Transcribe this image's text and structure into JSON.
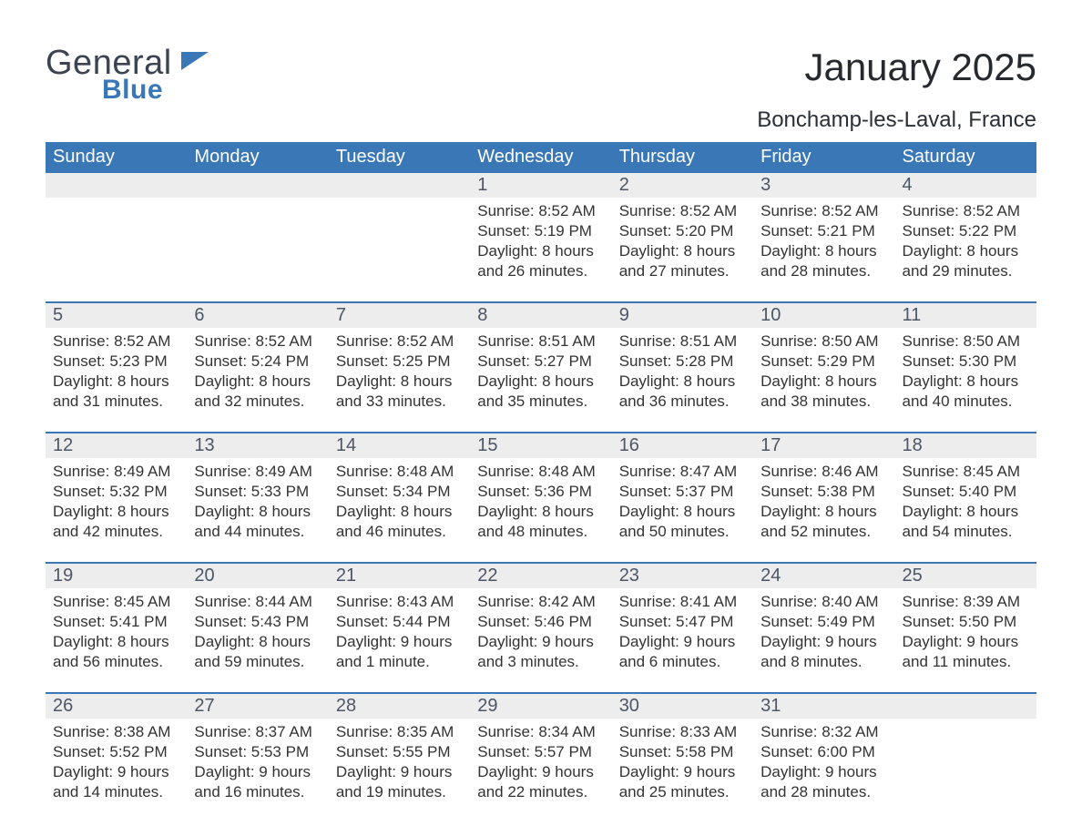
{
  "brand": {
    "word1": "General",
    "word2": "Blue"
  },
  "header": {
    "month_year": "January 2025",
    "location": "Bonchamp-les-Laval, France"
  },
  "colors": {
    "header_blue": "#3a77b7",
    "day_row_bg": "#ededed",
    "rule_blue": "#3a77b7",
    "text": "#333333",
    "day_number": "#4c5666",
    "background": "#ffffff"
  },
  "typography": {
    "body_fontsize_pt": 13,
    "daynum_fontsize_pt": 15,
    "weekday_fontsize_pt": 15,
    "title_fontsize_pt": 32,
    "location_fontsize_pt": 18
  },
  "weekdays": [
    "Sunday",
    "Monday",
    "Tuesday",
    "Wednesday",
    "Thursday",
    "Friday",
    "Saturday"
  ],
  "weeks": [
    {
      "days": [
        {
          "n": "",
          "lines": [
            "",
            "",
            "",
            ""
          ]
        },
        {
          "n": "",
          "lines": [
            "",
            "",
            "",
            ""
          ]
        },
        {
          "n": "",
          "lines": [
            "",
            "",
            "",
            ""
          ]
        },
        {
          "n": "1",
          "lines": [
            "Sunrise: 8:52 AM",
            "Sunset: 5:19 PM",
            "Daylight: 8 hours",
            "and 26 minutes."
          ]
        },
        {
          "n": "2",
          "lines": [
            "Sunrise: 8:52 AM",
            "Sunset: 5:20 PM",
            "Daylight: 8 hours",
            "and 27 minutes."
          ]
        },
        {
          "n": "3",
          "lines": [
            "Sunrise: 8:52 AM",
            "Sunset: 5:21 PM",
            "Daylight: 8 hours",
            "and 28 minutes."
          ]
        },
        {
          "n": "4",
          "lines": [
            "Sunrise: 8:52 AM",
            "Sunset: 5:22 PM",
            "Daylight: 8 hours",
            "and 29 minutes."
          ]
        }
      ]
    },
    {
      "days": [
        {
          "n": "5",
          "lines": [
            "Sunrise: 8:52 AM",
            "Sunset: 5:23 PM",
            "Daylight: 8 hours",
            "and 31 minutes."
          ]
        },
        {
          "n": "6",
          "lines": [
            "Sunrise: 8:52 AM",
            "Sunset: 5:24 PM",
            "Daylight: 8 hours",
            "and 32 minutes."
          ]
        },
        {
          "n": "7",
          "lines": [
            "Sunrise: 8:52 AM",
            "Sunset: 5:25 PM",
            "Daylight: 8 hours",
            "and 33 minutes."
          ]
        },
        {
          "n": "8",
          "lines": [
            "Sunrise: 8:51 AM",
            "Sunset: 5:27 PM",
            "Daylight: 8 hours",
            "and 35 minutes."
          ]
        },
        {
          "n": "9",
          "lines": [
            "Sunrise: 8:51 AM",
            "Sunset: 5:28 PM",
            "Daylight: 8 hours",
            "and 36 minutes."
          ]
        },
        {
          "n": "10",
          "lines": [
            "Sunrise: 8:50 AM",
            "Sunset: 5:29 PM",
            "Daylight: 8 hours",
            "and 38 minutes."
          ]
        },
        {
          "n": "11",
          "lines": [
            "Sunrise: 8:50 AM",
            "Sunset: 5:30 PM",
            "Daylight: 8 hours",
            "and 40 minutes."
          ]
        }
      ]
    },
    {
      "days": [
        {
          "n": "12",
          "lines": [
            "Sunrise: 8:49 AM",
            "Sunset: 5:32 PM",
            "Daylight: 8 hours",
            "and 42 minutes."
          ]
        },
        {
          "n": "13",
          "lines": [
            "Sunrise: 8:49 AM",
            "Sunset: 5:33 PM",
            "Daylight: 8 hours",
            "and 44 minutes."
          ]
        },
        {
          "n": "14",
          "lines": [
            "Sunrise: 8:48 AM",
            "Sunset: 5:34 PM",
            "Daylight: 8 hours",
            "and 46 minutes."
          ]
        },
        {
          "n": "15",
          "lines": [
            "Sunrise: 8:48 AM",
            "Sunset: 5:36 PM",
            "Daylight: 8 hours",
            "and 48 minutes."
          ]
        },
        {
          "n": "16",
          "lines": [
            "Sunrise: 8:47 AM",
            "Sunset: 5:37 PM",
            "Daylight: 8 hours",
            "and 50 minutes."
          ]
        },
        {
          "n": "17",
          "lines": [
            "Sunrise: 8:46 AM",
            "Sunset: 5:38 PM",
            "Daylight: 8 hours",
            "and 52 minutes."
          ]
        },
        {
          "n": "18",
          "lines": [
            "Sunrise: 8:45 AM",
            "Sunset: 5:40 PM",
            "Daylight: 8 hours",
            "and 54 minutes."
          ]
        }
      ]
    },
    {
      "days": [
        {
          "n": "19",
          "lines": [
            "Sunrise: 8:45 AM",
            "Sunset: 5:41 PM",
            "Daylight: 8 hours",
            "and 56 minutes."
          ]
        },
        {
          "n": "20",
          "lines": [
            "Sunrise: 8:44 AM",
            "Sunset: 5:43 PM",
            "Daylight: 8 hours",
            "and 59 minutes."
          ]
        },
        {
          "n": "21",
          "lines": [
            "Sunrise: 8:43 AM",
            "Sunset: 5:44 PM",
            "Daylight: 9 hours",
            "and 1 minute."
          ]
        },
        {
          "n": "22",
          "lines": [
            "Sunrise: 8:42 AM",
            "Sunset: 5:46 PM",
            "Daylight: 9 hours",
            "and 3 minutes."
          ]
        },
        {
          "n": "23",
          "lines": [
            "Sunrise: 8:41 AM",
            "Sunset: 5:47 PM",
            "Daylight: 9 hours",
            "and 6 minutes."
          ]
        },
        {
          "n": "24",
          "lines": [
            "Sunrise: 8:40 AM",
            "Sunset: 5:49 PM",
            "Daylight: 9 hours",
            "and 8 minutes."
          ]
        },
        {
          "n": "25",
          "lines": [
            "Sunrise: 8:39 AM",
            "Sunset: 5:50 PM",
            "Daylight: 9 hours",
            "and 11 minutes."
          ]
        }
      ]
    },
    {
      "days": [
        {
          "n": "26",
          "lines": [
            "Sunrise: 8:38 AM",
            "Sunset: 5:52 PM",
            "Daylight: 9 hours",
            "and 14 minutes."
          ]
        },
        {
          "n": "27",
          "lines": [
            "Sunrise: 8:37 AM",
            "Sunset: 5:53 PM",
            "Daylight: 9 hours",
            "and 16 minutes."
          ]
        },
        {
          "n": "28",
          "lines": [
            "Sunrise: 8:35 AM",
            "Sunset: 5:55 PM",
            "Daylight: 9 hours",
            "and 19 minutes."
          ]
        },
        {
          "n": "29",
          "lines": [
            "Sunrise: 8:34 AM",
            "Sunset: 5:57 PM",
            "Daylight: 9 hours",
            "and 22 minutes."
          ]
        },
        {
          "n": "30",
          "lines": [
            "Sunrise: 8:33 AM",
            "Sunset: 5:58 PM",
            "Daylight: 9 hours",
            "and 25 minutes."
          ]
        },
        {
          "n": "31",
          "lines": [
            "Sunrise: 8:32 AM",
            "Sunset: 6:00 PM",
            "Daylight: 9 hours",
            "and 28 minutes."
          ]
        },
        {
          "n": "",
          "lines": [
            "",
            "",
            "",
            ""
          ]
        }
      ]
    }
  ]
}
